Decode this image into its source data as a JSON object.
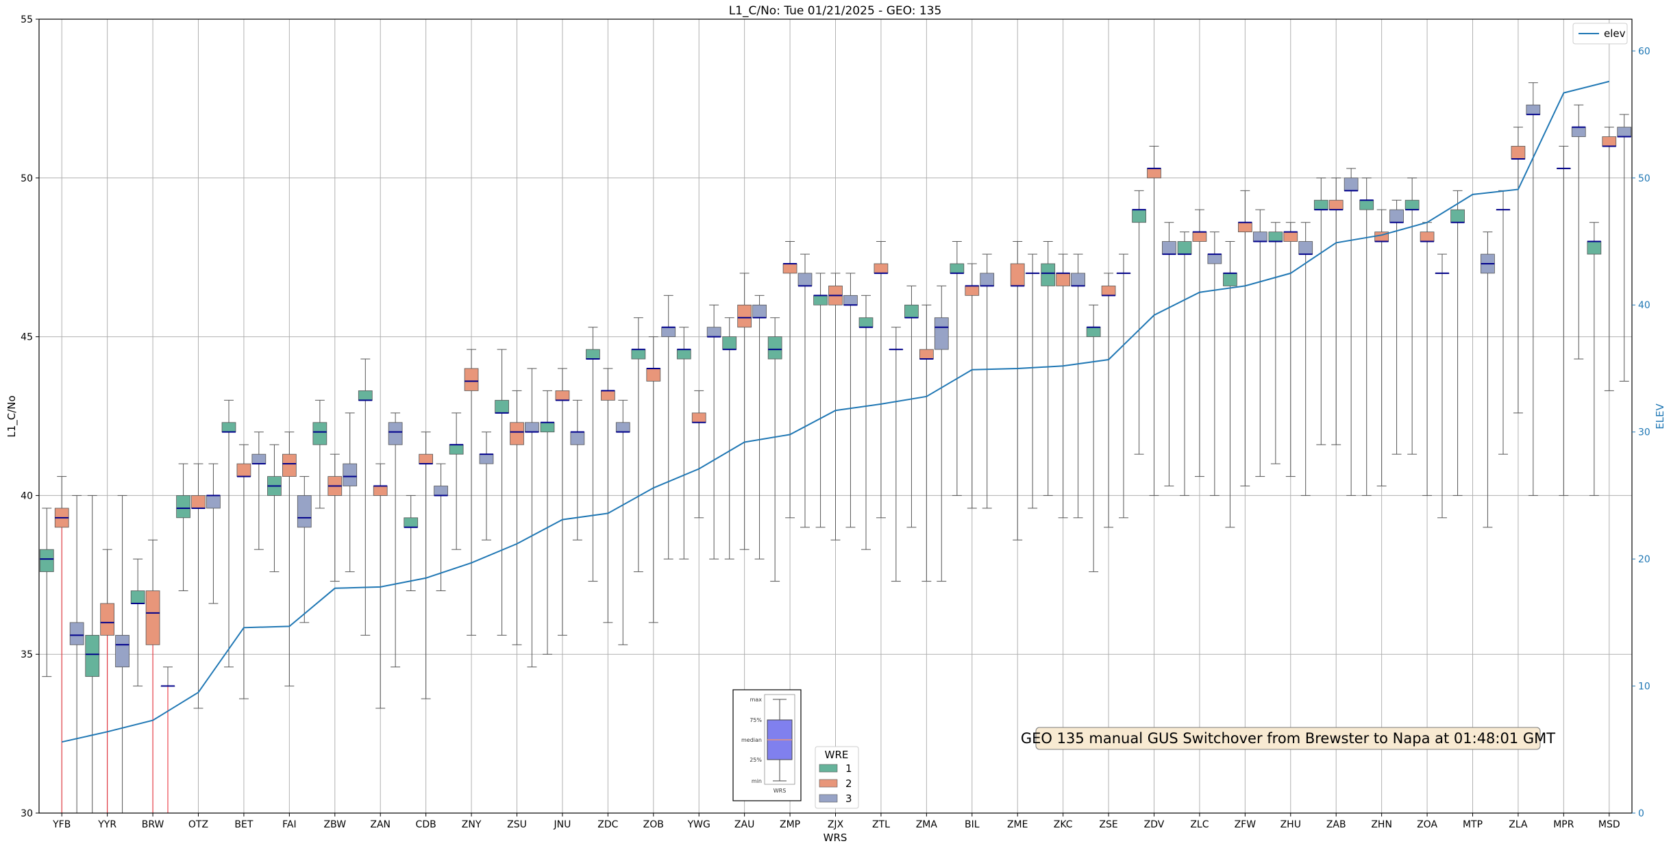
{
  "chart_data": {
    "type": "box",
    "title": "L1_C/No: Tue 01/21/2025 - GEO: 135",
    "xlabel": "WRS",
    "ylabel": "L1_C/No",
    "ylabel_right": "ELEV",
    "ylim": [
      30,
      55
    ],
    "ylim_right": [
      0,
      62.5
    ],
    "yticks": [
      30,
      35,
      40,
      45,
      50,
      55
    ],
    "yticks_right": [
      0,
      10,
      20,
      30,
      40,
      50,
      60
    ],
    "grid": true,
    "categories": [
      "YFB",
      "YYR",
      "BRW",
      "OTZ",
      "BET",
      "FAI",
      "ZBW",
      "ZAN",
      "CDB",
      "ZNY",
      "ZSU",
      "JNU",
      "ZDC",
      "ZOB",
      "YWG",
      "ZAU",
      "ZMP",
      "ZJX",
      "ZTL",
      "ZMA",
      "BIL",
      "ZME",
      "ZKC",
      "ZSE",
      "ZDV",
      "ZLC",
      "ZFW",
      "ZHU",
      "ZAB",
      "ZHN",
      "ZOA",
      "MTP",
      "ZLA",
      "MPR",
      "MSD"
    ],
    "series": [
      {
        "name": "1",
        "color": "#66b39b",
        "boxes": [
          {
            "min": 34.3,
            "q1": 37.6,
            "median": 38.0,
            "q3": 38.3,
            "max": 39.6
          },
          {
            "min": 20,
            "q1": 34.3,
            "median": 35.0,
            "q3": 35.6,
            "max": 40.0
          },
          {
            "min": 34.0,
            "q1": 36.6,
            "median": 36.6,
            "q3": 37.0,
            "max": 38.0
          },
          {
            "min": 37.0,
            "q1": 39.3,
            "median": 39.6,
            "q3": 40.0,
            "max": 41.0
          },
          {
            "min": 34.6,
            "q1": 42.0,
            "median": 42.0,
            "q3": 42.3,
            "max": 43.0
          },
          {
            "min": 37.6,
            "q1": 40.0,
            "median": 40.3,
            "q3": 40.6,
            "max": 41.6
          },
          {
            "min": 39.6,
            "q1": 41.6,
            "median": 42.0,
            "q3": 42.3,
            "max": 43.0
          },
          {
            "min": 35.6,
            "q1": 43.0,
            "median": 43.0,
            "q3": 43.3,
            "max": 44.3
          },
          {
            "min": 37.0,
            "q1": 39.0,
            "median": 39.0,
            "q3": 39.3,
            "max": 40.0
          },
          {
            "min": 38.3,
            "q1": 41.3,
            "median": 41.6,
            "q3": 41.6,
            "max": 42.6
          },
          {
            "min": 35.6,
            "q1": 42.6,
            "median": 42.6,
            "q3": 43.0,
            "max": 44.6
          },
          {
            "min": 35.0,
            "q1": 42.0,
            "median": 42.3,
            "q3": 42.3,
            "max": 43.3
          },
          {
            "min": 37.3,
            "q1": 44.3,
            "median": 44.3,
            "q3": 44.6,
            "max": 45.3
          },
          {
            "min": 37.6,
            "q1": 44.3,
            "median": 44.6,
            "q3": 44.6,
            "max": 45.6
          },
          {
            "min": 38.0,
            "q1": 44.3,
            "median": 44.6,
            "q3": 44.6,
            "max": 45.3
          },
          {
            "min": 38.0,
            "q1": 44.6,
            "median": 44.6,
            "q3": 45.0,
            "max": 45.6
          },
          {
            "min": 37.3,
            "q1": 44.3,
            "median": 44.6,
            "q3": 45.0,
            "max": 45.6
          },
          {
            "min": 39.0,
            "q1": 46.0,
            "median": 46.3,
            "q3": 46.3,
            "max": 47.0
          },
          {
            "min": 38.3,
            "q1": 45.3,
            "median": 45.3,
            "q3": 45.6,
            "max": 46.3
          },
          {
            "min": 39.0,
            "q1": 45.6,
            "median": 45.6,
            "q3": 46.0,
            "max": 46.6
          },
          {
            "min": 40.0,
            "q1": 47.0,
            "median": 47.0,
            "q3": 47.3,
            "max": 48.0
          },
          null,
          {
            "min": 40.0,
            "q1": 46.6,
            "median": 47.0,
            "q3": 47.3,
            "max": 48.0
          },
          {
            "min": 37.6,
            "q1": 45.0,
            "median": 45.3,
            "q3": 45.3,
            "max": 46.0
          },
          {
            "min": 41.3,
            "q1": 48.6,
            "median": 49.0,
            "q3": 49.0,
            "max": 49.6
          },
          {
            "min": 40.0,
            "q1": 47.6,
            "median": 47.6,
            "q3": 48.0,
            "max": 48.3
          },
          {
            "min": 39.0,
            "q1": 46.6,
            "median": 47.0,
            "q3": 47.0,
            "max": 48.0
          },
          {
            "min": 41.0,
            "q1": 48.0,
            "median": 48.0,
            "q3": 48.3,
            "max": 48.6
          },
          {
            "min": 41.6,
            "q1": 49.0,
            "median": 49.0,
            "q3": 49.3,
            "max": 50.0
          },
          {
            "min": 40.0,
            "q1": 49.0,
            "median": 49.3,
            "q3": 49.3,
            "max": 50.0
          },
          {
            "min": 41.3,
            "q1": 49.0,
            "median": 49.0,
            "q3": 49.3,
            "max": 50.0
          },
          {
            "min": 40.0,
            "q1": 48.6,
            "median": 48.6,
            "q3": 49.0,
            "max": 49.6
          },
          {
            "min": 41.3,
            "q1": 49.0,
            "median": 49.0,
            "q3": 49.0,
            "max": 49.6
          },
          null,
          {
            "min": 40.0,
            "q1": 47.6,
            "median": 48.0,
            "q3": 48.0,
            "max": 48.6
          }
        ]
      },
      {
        "name": "2",
        "color": "#e8967a",
        "boxes": [
          {
            "min": 20,
            "q1": 39.0,
            "median": 39.3,
            "q3": 39.6,
            "max": 40.6
          },
          {
            "min": 20,
            "q1": 35.6,
            "median": 36.0,
            "q3": 36.6,
            "max": 38.3
          },
          {
            "min": 20,
            "q1": 35.3,
            "median": 36.3,
            "q3": 37.0,
            "max": 38.6
          },
          {
            "min": 33.3,
            "q1": 39.6,
            "median": 39.6,
            "q3": 40.0,
            "max": 41.0
          },
          {
            "min": 33.6,
            "q1": 40.6,
            "median": 40.6,
            "q3": 41.0,
            "max": 41.6
          },
          {
            "min": 34.0,
            "q1": 40.6,
            "median": 41.0,
            "q3": 41.3,
            "max": 42.0
          },
          {
            "min": 37.3,
            "q1": 40.0,
            "median": 40.3,
            "q3": 40.6,
            "max": 41.3
          },
          {
            "min": 33.3,
            "q1": 40.0,
            "median": 40.3,
            "q3": 40.3,
            "max": 41.0
          },
          {
            "min": 33.6,
            "q1": 41.0,
            "median": 41.0,
            "q3": 41.3,
            "max": 42.0
          },
          {
            "min": 35.6,
            "q1": 43.3,
            "median": 43.6,
            "q3": 44.0,
            "max": 44.6
          },
          {
            "min": 35.3,
            "q1": 41.6,
            "median": 42.0,
            "q3": 42.3,
            "max": 43.3
          },
          {
            "min": 35.6,
            "q1": 43.0,
            "median": 43.0,
            "q3": 43.3,
            "max": 44.0
          },
          {
            "min": 36.0,
            "q1": 43.0,
            "median": 43.3,
            "q3": 43.3,
            "max": 44.0
          },
          {
            "min": 36.0,
            "q1": 43.6,
            "median": 44.0,
            "q3": 44.0,
            "max": 45.0
          },
          {
            "min": 39.3,
            "q1": 42.3,
            "median": 42.3,
            "q3": 42.6,
            "max": 43.3
          },
          {
            "min": 38.3,
            "q1": 45.3,
            "median": 45.6,
            "q3": 46.0,
            "max": 47.0
          },
          {
            "min": 39.3,
            "q1": 47.0,
            "median": 47.3,
            "q3": 47.3,
            "max": 48.0
          },
          {
            "min": 38.6,
            "q1": 46.0,
            "median": 46.3,
            "q3": 46.6,
            "max": 47.0
          },
          {
            "min": 39.3,
            "q1": 47.0,
            "median": 47.0,
            "q3": 47.3,
            "max": 48.0
          },
          {
            "min": 37.3,
            "q1": 44.3,
            "median": 44.3,
            "q3": 44.6,
            "max": 46.0
          },
          {
            "min": 39.6,
            "q1": 46.3,
            "median": 46.6,
            "q3": 46.6,
            "max": 47.3
          },
          {
            "min": 38.6,
            "q1": 46.6,
            "median": 46.6,
            "q3": 47.3,
            "max": 48.0
          },
          {
            "min": 39.3,
            "q1": 46.6,
            "median": 47.0,
            "q3": 47.0,
            "max": 47.6
          },
          {
            "min": 39.0,
            "q1": 46.3,
            "median": 46.3,
            "q3": 46.6,
            "max": 47.0
          },
          {
            "min": 40.0,
            "q1": 50.0,
            "median": 50.3,
            "q3": 50.3,
            "max": 51.0
          },
          {
            "min": 40.6,
            "q1": 48.0,
            "median": 48.3,
            "q3": 48.3,
            "max": 49.0
          },
          {
            "min": 40.3,
            "q1": 48.3,
            "median": 48.6,
            "q3": 48.6,
            "max": 49.6
          },
          {
            "min": 40.6,
            "q1": 48.0,
            "median": 48.3,
            "q3": 48.3,
            "max": 48.6
          },
          {
            "min": 41.6,
            "q1": 49.0,
            "median": 49.0,
            "q3": 49.3,
            "max": 50.0
          },
          {
            "min": 40.3,
            "q1": 48.0,
            "median": 48.0,
            "q3": 48.3,
            "max": 49.0
          },
          {
            "min": 40.0,
            "q1": 48.0,
            "median": 48.0,
            "q3": 48.3,
            "max": 48.6
          },
          null,
          {
            "min": 42.6,
            "q1": 50.6,
            "median": 50.6,
            "q3": 51.0,
            "max": 51.6
          },
          {
            "min": 40.0,
            "q1": 50.3,
            "median": 50.3,
            "q3": 50.3,
            "max": 51.0
          },
          {
            "min": 43.3,
            "q1": 51.0,
            "median": 51.0,
            "q3": 51.3,
            "max": 51.6
          }
        ]
      },
      {
        "name": "3",
        "color": "#97a3c6",
        "boxes": [
          {
            "min": 20,
            "q1": 35.3,
            "median": 35.6,
            "q3": 36.0,
            "max": 40.0
          },
          {
            "min": 20,
            "q1": 34.6,
            "median": 35.3,
            "q3": 35.6,
            "max": 40.0
          },
          {
            "min": 20,
            "q1": 34.0,
            "median": 34.0,
            "q3": 34.0,
            "max": 34.6
          },
          {
            "min": 36.6,
            "q1": 39.6,
            "median": 40.0,
            "q3": 40.0,
            "max": 41.0
          },
          {
            "min": 38.3,
            "q1": 41.0,
            "median": 41.0,
            "q3": 41.3,
            "max": 42.0
          },
          {
            "min": 36.0,
            "q1": 39.0,
            "median": 39.3,
            "q3": 40.0,
            "max": 40.6
          },
          {
            "min": 37.6,
            "q1": 40.3,
            "median": 40.6,
            "q3": 41.0,
            "max": 42.6
          },
          {
            "min": 34.6,
            "q1": 41.6,
            "median": 42.0,
            "q3": 42.3,
            "max": 42.6
          },
          {
            "min": 37.0,
            "q1": 40.0,
            "median": 40.0,
            "q3": 40.3,
            "max": 41.0
          },
          {
            "min": 38.6,
            "q1": 41.0,
            "median": 41.3,
            "q3": 41.3,
            "max": 42.0
          },
          {
            "min": 34.6,
            "q1": 42.0,
            "median": 42.0,
            "q3": 42.3,
            "max": 44.0
          },
          {
            "min": 38.6,
            "q1": 41.6,
            "median": 42.0,
            "q3": 42.0,
            "max": 43.0
          },
          {
            "min": 35.3,
            "q1": 42.0,
            "median": 42.0,
            "q3": 42.3,
            "max": 43.0
          },
          {
            "min": 38.0,
            "q1": 45.0,
            "median": 45.3,
            "q3": 45.3,
            "max": 46.3
          },
          {
            "min": 38.0,
            "q1": 45.0,
            "median": 45.0,
            "q3": 45.3,
            "max": 46.0
          },
          {
            "min": 38.0,
            "q1": 45.6,
            "median": 45.6,
            "q3": 46.0,
            "max": 46.3
          },
          {
            "min": 39.0,
            "q1": 46.6,
            "median": 46.6,
            "q3": 47.0,
            "max": 47.6
          },
          {
            "min": 39.0,
            "q1": 46.0,
            "median": 46.0,
            "q3": 46.3,
            "max": 47.0
          },
          {
            "min": 37.3,
            "q1": 44.6,
            "median": 44.6,
            "q3": 44.6,
            "max": 45.3
          },
          {
            "min": 37.3,
            "q1": 44.6,
            "median": 45.3,
            "q3": 45.6,
            "max": 46.6
          },
          {
            "min": 39.6,
            "q1": 46.6,
            "median": 46.6,
            "q3": 47.0,
            "max": 47.6
          },
          {
            "min": 39.6,
            "q1": 47.0,
            "median": 47.0,
            "q3": 47.0,
            "max": 47.6
          },
          {
            "min": 39.3,
            "q1": 46.6,
            "median": 46.6,
            "q3": 47.0,
            "max": 47.6
          },
          {
            "min": 39.3,
            "q1": 47.0,
            "median": 47.0,
            "q3": 47.0,
            "max": 47.6
          },
          {
            "min": 40.3,
            "q1": 47.6,
            "median": 47.6,
            "q3": 48.0,
            "max": 48.6
          },
          {
            "min": 40.0,
            "q1": 47.3,
            "median": 47.6,
            "q3": 47.6,
            "max": 48.3
          },
          {
            "min": 40.6,
            "q1": 48.0,
            "median": 48.0,
            "q3": 48.3,
            "max": 49.0
          },
          {
            "min": 40.0,
            "q1": 47.6,
            "median": 47.6,
            "q3": 48.0,
            "max": 48.6
          },
          {
            "min": 40.0,
            "q1": 49.6,
            "median": 49.6,
            "q3": 50.0,
            "max": 50.3
          },
          {
            "min": 41.3,
            "q1": 48.6,
            "median": 48.6,
            "q3": 49.0,
            "max": 49.3
          },
          {
            "min": 39.3,
            "q1": 47.0,
            "median": 47.0,
            "q3": 47.0,
            "max": 47.6
          },
          {
            "min": 39.0,
            "q1": 47.0,
            "median": 47.3,
            "q3": 47.6,
            "max": 48.3
          },
          {
            "min": 40.0,
            "q1": 52.0,
            "median": 52.0,
            "q3": 52.3,
            "max": 53.0
          },
          {
            "min": 44.3,
            "q1": 51.3,
            "median": 51.6,
            "q3": 51.6,
            "max": 52.3
          },
          {
            "min": 43.6,
            "q1": 51.3,
            "median": 51.3,
            "q3": 51.6,
            "max": 52.0
          }
        ]
      }
    ],
    "elev": {
      "name": "elev",
      "color": "#1f77b4",
      "values": [
        5.6,
        6.4,
        7.3,
        9.5,
        14.6,
        14.7,
        17.7,
        17.8,
        18.5,
        19.7,
        21.2,
        23.1,
        23.6,
        25.6,
        27.1,
        29.2,
        29.8,
        31.7,
        32.2,
        32.8,
        34.9,
        35.0,
        35.2,
        35.7,
        39.2,
        41.0,
        41.5,
        42.5,
        44.9,
        45.5,
        46.5,
        48.7,
        49.1,
        56.7,
        57.6
      ]
    },
    "whisker_color": "#555555",
    "red_whisker_color": "#e8202a",
    "median_color": "#00008b",
    "legend": {
      "title": "WRE",
      "entries": [
        "1",
        "2",
        "3"
      ],
      "position": "bottom-center"
    },
    "right_legend": {
      "entries": [
        "elev"
      ],
      "position": "top-right"
    },
    "annotation": "GEO 135 manual GUS Switchover from Brewster to Napa at 01:48:01 GMT",
    "key_box": {
      "labels": [
        "max",
        "75%",
        "median",
        "25%",
        "min"
      ],
      "xlabel": "WRS",
      "fill": "#8080ee"
    }
  }
}
